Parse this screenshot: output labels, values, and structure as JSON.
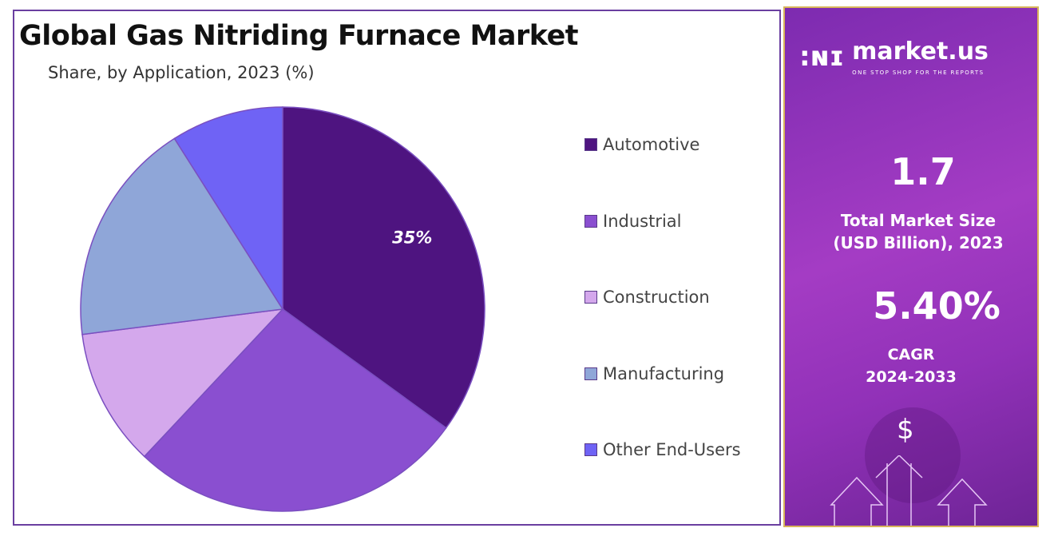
{
  "title": "Global Gas Nitriding Furnace Market",
  "subtitle": "Share, by Application, 2023 (%)",
  "chart_data": {
    "type": "pie",
    "title": "Global Gas Nitriding Furnace Market",
    "subtitle": "Share, by Application, 2023 (%)",
    "categories": [
      "Automotive",
      "Industrial",
      "Construction",
      "Manufacturing",
      "Other End-Users"
    ],
    "values": [
      35,
      27,
      11,
      18,
      9
    ],
    "colors": [
      "#4e1480",
      "#8a4fd0",
      "#d4a8ec",
      "#8fa6d8",
      "#6f63f5"
    ],
    "data_labels": [
      "35%",
      "",
      "",
      "",
      ""
    ],
    "legend_placement": "right"
  },
  "panel": {
    "brand": "market.us",
    "tagline": "ONE STOP SHOP FOR THE REPORTS",
    "market_size_value": "1.7",
    "market_size_label_1": "Total Market Size",
    "market_size_label_2": "(USD Billion), 2023",
    "cagr_value": "5.40%",
    "cagr_label_1": "CAGR",
    "cagr_label_2": "2024-2033",
    "icon": "dollar-growth-arrows-icon",
    "dollar_symbol": "$"
  }
}
